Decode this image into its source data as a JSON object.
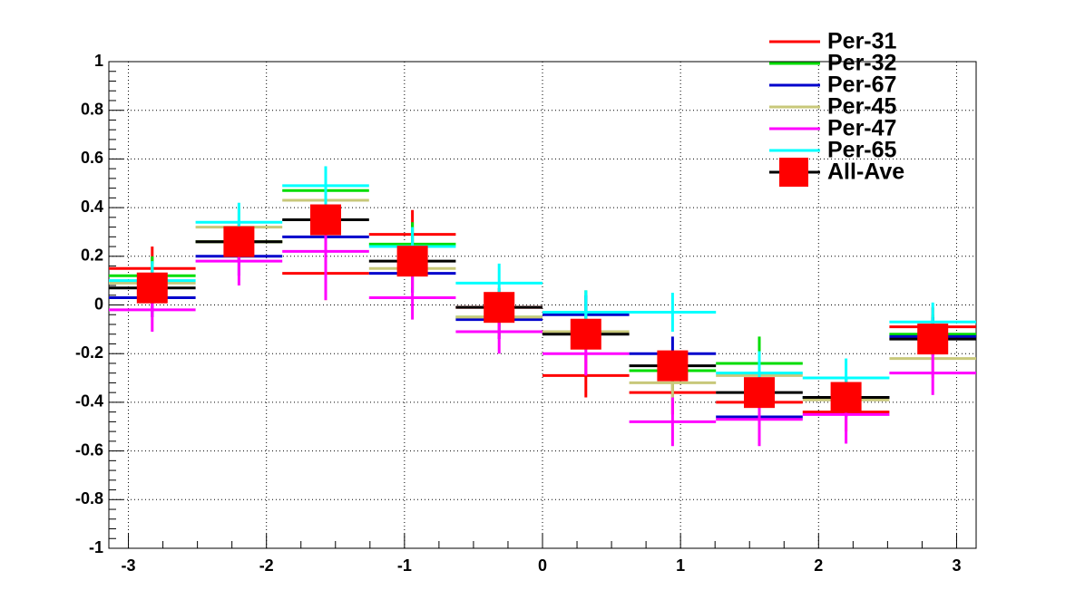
{
  "chart_data": {
    "type": "histogram",
    "bins": [
      -3.1416,
      -2.5133,
      -1.885,
      -1.2566,
      -0.6283,
      0,
      0.6283,
      1.2566,
      1.885,
      2.5133,
      3.1416
    ],
    "series": [
      {
        "name": "Per-31",
        "color": "#ff0000",
        "values": [
          0.15,
          0.26,
          0.13,
          0.29,
          -0.01,
          -0.29,
          -0.36,
          -0.4,
          -0.44,
          -0.09
        ],
        "errors": [
          0.09,
          0.08,
          0.11,
          0.1,
          0.08,
          0.09,
          0.09,
          0.09,
          0.08,
          0.08
        ]
      },
      {
        "name": "Per-32",
        "color": "#00dd00",
        "values": [
          0.12,
          0.26,
          0.47,
          0.25,
          -0.05,
          -0.03,
          -0.27,
          -0.24,
          -0.38,
          -0.12
        ],
        "errors": [
          0.08,
          0.08,
          0.08,
          0.09,
          0.08,
          0.09,
          0.08,
          0.11,
          0.08,
          0.08
        ]
      },
      {
        "name": "Per-67",
        "color": "#0000cc",
        "values": [
          0.03,
          0.2,
          0.28,
          0.13,
          -0.06,
          -0.04,
          -0.2,
          -0.46,
          -0.38,
          -0.13
        ],
        "errors": [
          0.08,
          0.08,
          0.08,
          0.08,
          0.08,
          0.08,
          0.07,
          0.08,
          0.08,
          0.08
        ]
      },
      {
        "name": "Per-45",
        "color": "#c8c87a",
        "values": [
          0.09,
          0.32,
          0.43,
          0.15,
          -0.05,
          -0.11,
          -0.32,
          -0.29,
          -0.39,
          -0.22
        ],
        "errors": [
          0.08,
          0.08,
          0.08,
          0.08,
          0.08,
          0.08,
          0.08,
          0.08,
          0.08,
          0.08
        ]
      },
      {
        "name": "Per-47",
        "color": "#ff00ff",
        "values": [
          -0.02,
          0.18,
          0.22,
          0.03,
          -0.11,
          -0.2,
          -0.48,
          -0.47,
          -0.45,
          -0.28
        ],
        "errors": [
          0.09,
          0.1,
          0.2,
          0.09,
          0.09,
          0.09,
          0.1,
          0.11,
          0.12,
          0.09
        ]
      },
      {
        "name": "Per-65",
        "color": "#00ffff",
        "values": [
          0.1,
          0.34,
          0.49,
          0.24,
          0.09,
          -0.03,
          -0.03,
          -0.28,
          -0.3,
          -0.07
        ],
        "errors": [
          0.08,
          0.08,
          0.08,
          0.08,
          0.08,
          0.09,
          0.08,
          0.09,
          0.08,
          0.08
        ]
      },
      {
        "name": "All-Ave",
        "color": "#000000",
        "marker_color": "#ff0000",
        "values": [
          0.07,
          0.26,
          0.35,
          0.18,
          -0.01,
          -0.12,
          -0.25,
          -0.36,
          -0.38,
          -0.14
        ],
        "errors": [
          0.02,
          0.02,
          0.02,
          0.02,
          0.02,
          0.02,
          0.02,
          0.02,
          0.02,
          0.02
        ]
      }
    ],
    "xlim": [
      -3.1416,
      3.1416
    ],
    "ylim": [
      -1,
      1
    ],
    "xticks": [
      -3,
      -2,
      -1,
      0,
      1,
      2,
      3
    ],
    "yticks": [
      -1,
      -0.8,
      -0.6,
      -0.4,
      -0.2,
      0,
      0.2,
      0.4,
      0.6,
      0.8,
      1
    ],
    "grid": true,
    "legend": "top-right"
  }
}
